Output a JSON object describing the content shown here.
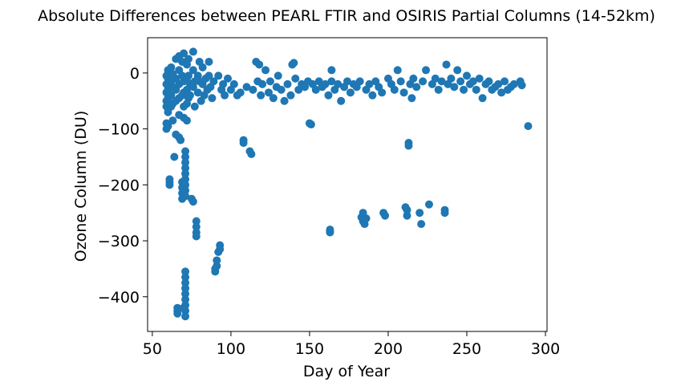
{
  "chart_data": {
    "type": "scatter",
    "title": "Absolute Differences between PEARL FTIR and OSIRIS Partial Columns (14-52km)",
    "xlabel": "Day of Year",
    "ylabel": "Ozone Column (DU)",
    "xlim": [
      47,
      301
    ],
    "ylim": [
      -462,
      63
    ],
    "xticks": [
      50,
      100,
      150,
      200,
      250,
      300
    ],
    "yticks": [
      0,
      -100,
      -200,
      -300,
      -400
    ],
    "xtick_labels": [
      "50",
      "100",
      "150",
      "200",
      "250",
      "300"
    ],
    "ytick_labels": [
      "0",
      "−100",
      "−200",
      "−300",
      "−400"
    ],
    "grid": false,
    "legend": "none",
    "marker_color": "#1f77b4",
    "series": [
      {
        "points": [
          [
            59,
            -5
          ],
          [
            59,
            -20
          ],
          [
            59,
            -35
          ],
          [
            59,
            -50
          ],
          [
            59,
            -60
          ],
          [
            59,
            -90
          ],
          [
            59,
            -100
          ],
          [
            60,
            5
          ],
          [
            60,
            -10
          ],
          [
            60,
            -30
          ],
          [
            60,
            -45
          ],
          [
            60,
            -70
          ],
          [
            60,
            -95
          ],
          [
            61,
            -190
          ],
          [
            61,
            -195
          ],
          [
            61,
            -200
          ],
          [
            62,
            10
          ],
          [
            62,
            -15
          ],
          [
            62,
            -40
          ],
          [
            62,
            -60
          ],
          [
            63,
            -2
          ],
          [
            63,
            -25
          ],
          [
            63,
            -55
          ],
          [
            63,
            -85
          ],
          [
            64,
            -150
          ],
          [
            65,
            25
          ],
          [
            65,
            -10
          ],
          [
            65,
            -30
          ],
          [
            65,
            -50
          ],
          [
            65,
            -110
          ],
          [
            66,
            -420
          ],
          [
            66,
            -425
          ],
          [
            66,
            -430
          ],
          [
            67,
            30
          ],
          [
            67,
            5
          ],
          [
            67,
            -20
          ],
          [
            67,
            -45
          ],
          [
            67,
            -75
          ],
          [
            67,
            -115
          ],
          [
            68,
            -120
          ],
          [
            69,
            20
          ],
          [
            69,
            -5
          ],
          [
            69,
            -40
          ],
          [
            69,
            -195
          ],
          [
            69,
            -205
          ],
          [
            69,
            -215
          ],
          [
            69,
            -225
          ],
          [
            70,
            35
          ],
          [
            70,
            -15
          ],
          [
            70,
            -35
          ],
          [
            70,
            -60
          ],
          [
            70,
            -80
          ],
          [
            70,
            -420
          ],
          [
            71,
            -140
          ],
          [
            71,
            -150
          ],
          [
            71,
            -160
          ],
          [
            71,
            -170
          ],
          [
            71,
            -180
          ],
          [
            71,
            -190
          ],
          [
            71,
            -200
          ],
          [
            71,
            -210
          ],
          [
            71,
            -220
          ],
          [
            71,
            -355
          ],
          [
            71,
            -365
          ],
          [
            71,
            -375
          ],
          [
            71,
            -385
          ],
          [
            71,
            -395
          ],
          [
            71,
            -405
          ],
          [
            71,
            -415
          ],
          [
            71,
            -425
          ],
          [
            71,
            -435
          ],
          [
            72,
            15
          ],
          [
            72,
            -10
          ],
          [
            72,
            -30
          ],
          [
            72,
            -55
          ],
          [
            72,
            -85
          ],
          [
            73,
            25
          ],
          [
            73,
            -5
          ],
          [
            73,
            -45
          ],
          [
            74,
            -20
          ],
          [
            74,
            -40
          ],
          [
            75,
            -225
          ],
          [
            76,
            -230
          ],
          [
            76,
            38
          ],
          [
            76,
            5
          ],
          [
            76,
            -25
          ],
          [
            77,
            -15
          ],
          [
            77,
            -60
          ],
          [
            78,
            -265
          ],
          [
            78,
            -275
          ],
          [
            78,
            -285
          ],
          [
            78,
            -292
          ],
          [
            79,
            -5
          ],
          [
            79,
            -35
          ],
          [
            80,
            20
          ],
          [
            80,
            -15
          ],
          [
            81,
            -50
          ],
          [
            82,
            10
          ],
          [
            82,
            -20
          ],
          [
            83,
            -40
          ],
          [
            84,
            -10
          ],
          [
            85,
            -30
          ],
          [
            86,
            20
          ],
          [
            86,
            -5
          ],
          [
            87,
            -25
          ],
          [
            88,
            -45
          ],
          [
            89,
            -15
          ],
          [
            90,
            -350
          ],
          [
            90,
            -355
          ],
          [
            91,
            -335
          ],
          [
            91,
            -345
          ],
          [
            92,
            -320
          ],
          [
            92,
            -5
          ],
          [
            93,
            -308
          ],
          [
            93,
            -315
          ],
          [
            94,
            -30
          ],
          [
            95,
            -20
          ],
          [
            96,
            -40
          ],
          [
            98,
            -10
          ],
          [
            100,
            -30
          ],
          [
            102,
            -20
          ],
          [
            104,
            -40
          ],
          [
            106,
            -35
          ],
          [
            108,
            -120
          ],
          [
            108,
            -125
          ],
          [
            110,
            -25
          ],
          [
            112,
            -140
          ],
          [
            113,
            -145
          ],
          [
            114,
            -30
          ],
          [
            116,
            20
          ],
          [
            117,
            -15
          ],
          [
            118,
            15
          ],
          [
            119,
            -40
          ],
          [
            120,
            -20
          ],
          [
            122,
            5
          ],
          [
            124,
            -35
          ],
          [
            125,
            -15
          ],
          [
            127,
            -45
          ],
          [
            129,
            -25
          ],
          [
            130,
            -5
          ],
          [
            132,
            -30
          ],
          [
            134,
            -50
          ],
          [
            136,
            -20
          ],
          [
            138,
            -40
          ],
          [
            139,
            15
          ],
          [
            140,
            18
          ],
          [
            141,
            -10
          ],
          [
            143,
            -30
          ],
          [
            145,
            -20
          ],
          [
            147,
            -25
          ],
          [
            149,
            -15
          ],
          [
            150,
            -90
          ],
          [
            151,
            -92
          ],
          [
            152,
            -20
          ],
          [
            154,
            -30
          ],
          [
            156,
            -15
          ],
          [
            158,
            -25
          ],
          [
            160,
            -20
          ],
          [
            162,
            -40
          ],
          [
            163,
            -280
          ],
          [
            163,
            -283
          ],
          [
            163,
            -285
          ],
          [
            164,
            5
          ],
          [
            164,
            -15
          ],
          [
            166,
            -30
          ],
          [
            168,
            -20
          ],
          [
            170,
            -50
          ],
          [
            172,
            -25
          ],
          [
            174,
            -15
          ],
          [
            176,
            -35
          ],
          [
            178,
            -20
          ],
          [
            180,
            -25
          ],
          [
            182,
            -15
          ],
          [
            183,
            -258
          ],
          [
            184,
            -250
          ],
          [
            184,
            -265
          ],
          [
            185,
            -270
          ],
          [
            186,
            -260
          ],
          [
            186,
            -30
          ],
          [
            188,
            -20
          ],
          [
            190,
            -40
          ],
          [
            192,
            -15
          ],
          [
            194,
            -25
          ],
          [
            196,
            -35
          ],
          [
            197,
            -250
          ],
          [
            198,
            -255
          ],
          [
            200,
            -10
          ],
          [
            202,
            -20
          ],
          [
            204,
            -30
          ],
          [
            206,
            5
          ],
          [
            208,
            -15
          ],
          [
            210,
            -35
          ],
          [
            211,
            -240
          ],
          [
            212,
            -245
          ],
          [
            212,
            -255
          ],
          [
            213,
            -125
          ],
          [
            213,
            -130
          ],
          [
            214,
            -20
          ],
          [
            215,
            -45
          ],
          [
            216,
            -10
          ],
          [
            218,
            -25
          ],
          [
            220,
            -250
          ],
          [
            221,
            -270
          ],
          [
            222,
            -15
          ],
          [
            224,
            5
          ],
          [
            226,
            -235
          ],
          [
            228,
            -20
          ],
          [
            230,
            -10
          ],
          [
            232,
            -30
          ],
          [
            234,
            -15
          ],
          [
            236,
            -245
          ],
          [
            236,
            -250
          ],
          [
            237,
            15
          ],
          [
            238,
            -20
          ],
          [
            240,
            -10
          ],
          [
            242,
            -25
          ],
          [
            244,
            5
          ],
          [
            246,
            -15
          ],
          [
            248,
            -30
          ],
          [
            250,
            -5
          ],
          [
            252,
            -20
          ],
          [
            254,
            -15
          ],
          [
            256,
            -30
          ],
          [
            258,
            -10
          ],
          [
            260,
            -45
          ],
          [
            262,
            -20
          ],
          [
            264,
            -15
          ],
          [
            266,
            -30
          ],
          [
            268,
            -25
          ],
          [
            270,
            -20
          ],
          [
            272,
            -35
          ],
          [
            274,
            -15
          ],
          [
            276,
            -30
          ],
          [
            278,
            -25
          ],
          [
            280,
            -20
          ],
          [
            284,
            -15
          ],
          [
            285,
            -22
          ],
          [
            289,
            -95
          ]
        ]
      }
    ]
  }
}
